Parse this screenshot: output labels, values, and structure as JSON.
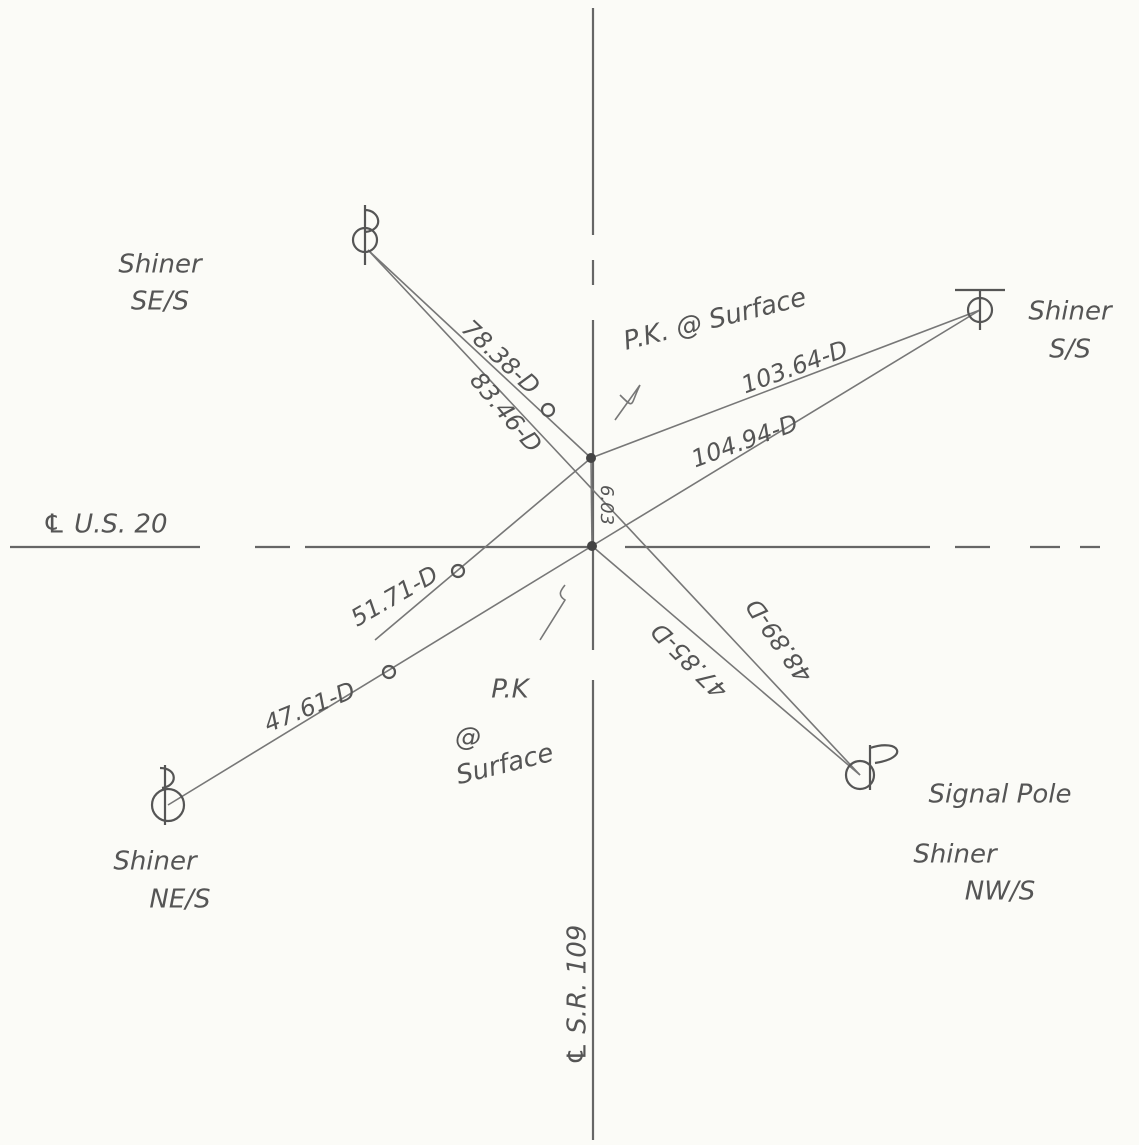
{
  "roads": {
    "east_west": "℄ U.S. 20",
    "north_south": "℄ S.R. 109"
  },
  "nodes": [
    {
      "name": "Shiner",
      "designation": "SE/S"
    },
    {
      "name": "Shiner",
      "designation": "S/S"
    },
    {
      "name": "Shiner",
      "designation": "NE/S"
    },
    {
      "name": "Signal Pole"
    },
    {
      "name": "Shiner",
      "designation": "NW/S"
    },
    {
      "name": "P.K. @ Surface"
    },
    {
      "name": "P.K",
      "at": "@",
      "surface": "Surface"
    }
  ],
  "measurements": [
    "78.38-D",
    "83.46-D",
    "103.64-D",
    "104.94-D",
    "51.71-D",
    "47.61-D",
    "48.89-D",
    "47.85-D",
    "6.03"
  ]
}
